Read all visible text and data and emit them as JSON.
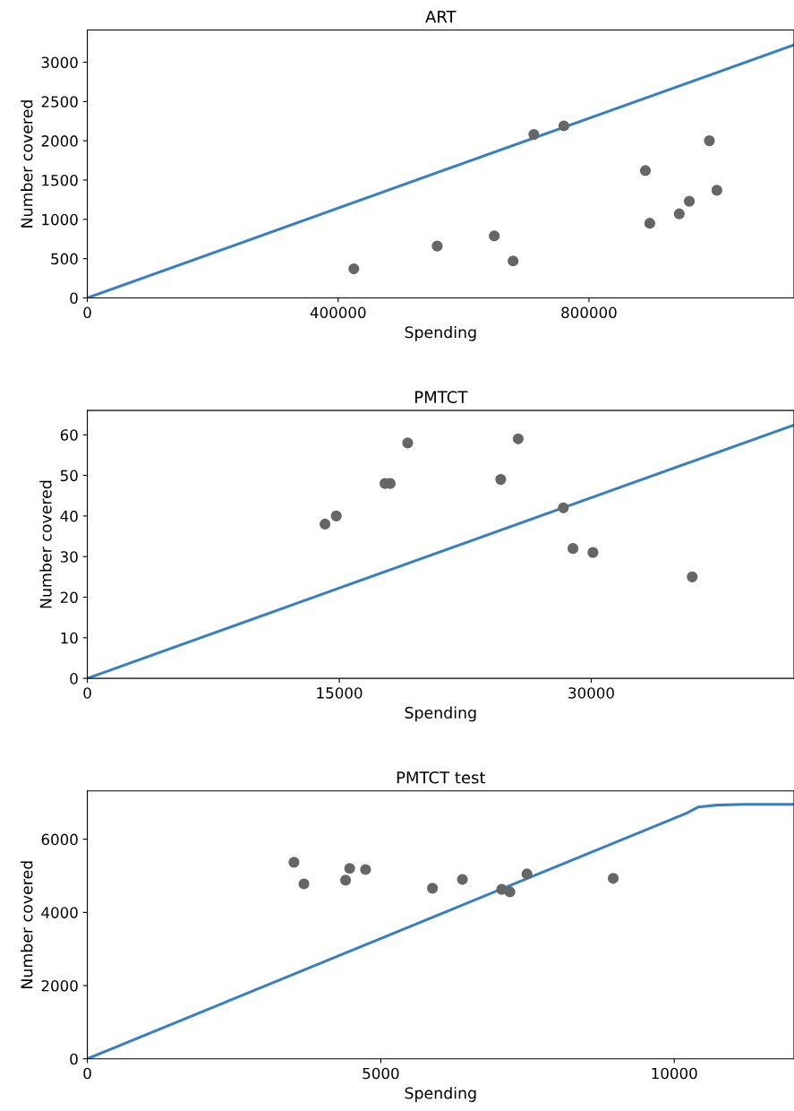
{
  "chart_data": [
    {
      "type": "scatter",
      "title": "ART",
      "xlabel": "Spending",
      "ylabel": "Number covered",
      "xlim": [
        0,
        1127000
      ],
      "ylim": [
        0,
        3410
      ],
      "xticks": [
        0,
        400000,
        800000
      ],
      "yticks": [
        0,
        500,
        1000,
        1500,
        2000,
        2500,
        3000
      ],
      "grid": false,
      "legend": false,
      "series": [
        {
          "color": "#666666",
          "marker": "circle",
          "x": [
            425000,
            558000,
            649000,
            679000,
            712000,
            760000,
            890000,
            897000,
            944000,
            960000,
            992000,
            1004000
          ],
          "values": [
            370,
            660,
            790,
            470,
            2080,
            2190,
            1620,
            950,
            1070,
            1230,
            2000,
            1370
          ]
        },
        {
          "type": "line",
          "color": "#3a80c0",
          "marker": "none",
          "line_style": "solid",
          "x": [
            0,
            1127000
          ],
          "values": [
            0,
            3220
          ]
        }
      ]
    },
    {
      "type": "scatter",
      "title": "PMTCT",
      "xlabel": "Spending",
      "ylabel": "Number covered",
      "xlim": [
        0,
        42070
      ],
      "ylim": [
        0,
        66
      ],
      "xticks": [
        0,
        15000,
        30000
      ],
      "yticks": [
        0,
        10,
        20,
        30,
        40,
        50,
        60
      ],
      "grid": false,
      "legend": false,
      "series": [
        {
          "color": "#666666",
          "marker": "circle",
          "x": [
            14150,
            14820,
            17720,
            18030,
            19070,
            24610,
            25650,
            28340,
            28910,
            30100,
            36010
          ],
          "values": [
            38,
            40,
            48,
            48,
            58,
            49,
            59,
            42,
            32,
            31,
            25
          ]
        },
        {
          "type": "line",
          "color": "#3a80c0",
          "marker": "none",
          "line_style": "solid",
          "x": [
            0,
            42070
          ],
          "values": [
            0,
            62.4
          ]
        }
      ]
    },
    {
      "type": "scatter",
      "title": "PMTCT test",
      "xlabel": "Spending",
      "ylabel": "Number covered",
      "xlim": [
        0,
        12040
      ],
      "ylim": [
        0,
        7320
      ],
      "xticks": [
        0,
        5000,
        10000
      ],
      "yticks": [
        0,
        2000,
        4000,
        6000
      ],
      "grid": false,
      "legend": false,
      "series": [
        {
          "color": "#666666",
          "marker": "circle",
          "x": [
            3520,
            3690,
            4400,
            4470,
            4740,
            5880,
            6390,
            7060,
            7200,
            7490,
            8960
          ],
          "values": [
            5370,
            4780,
            4880,
            5200,
            5170,
            4660,
            4900,
            4630,
            4560,
            5050,
            4930
          ]
        },
        {
          "type": "line",
          "color": "#3a80c0",
          "marker": "none",
          "line_style": "solid",
          "x": [
            0,
            10210,
            10410,
            10720,
            11170,
            12040
          ],
          "values": [
            0,
            6710,
            6880,
            6930,
            6950,
            6950
          ]
        }
      ]
    }
  ]
}
